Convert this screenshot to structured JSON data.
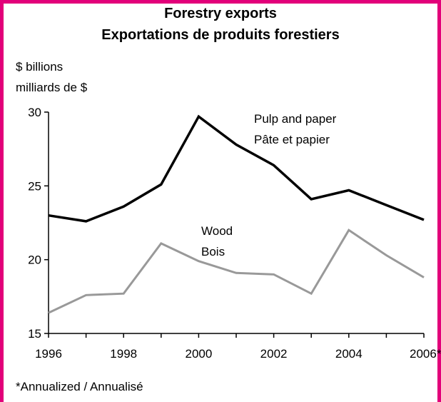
{
  "chart_data": {
    "type": "line",
    "title": "Forestry exports",
    "subtitle": "Exportations de produits forestiers",
    "ylabel": [
      "$ billions",
      "milliards de $"
    ],
    "xlabel": "",
    "x": [
      1996,
      1997,
      1998,
      1999,
      2000,
      2001,
      2002,
      2003,
      2004,
      2005,
      2006
    ],
    "x_tick_labels": [
      "1996",
      "1998",
      "2000",
      "2002",
      "2004",
      "2006*"
    ],
    "x_tick_values": [
      1996,
      1998,
      2000,
      2002,
      2004,
      2006
    ],
    "y_tick_labels": [
      "15",
      "20",
      "25",
      "30"
    ],
    "y_tick_values": [
      15,
      20,
      25,
      30
    ],
    "ylim": [
      15,
      30
    ],
    "grid": false,
    "series": [
      {
        "name": "Pulp and paper",
        "name_fr": "Pâte et papier",
        "color": "#000000",
        "values": [
          23.0,
          22.6,
          23.6,
          25.1,
          29.7,
          27.8,
          26.4,
          24.1,
          24.7,
          23.7,
          22.7
        ]
      },
      {
        "name": "Wood",
        "name_fr": "Bois",
        "color": "#999999",
        "values": [
          16.4,
          17.6,
          17.7,
          21.1,
          19.9,
          19.1,
          19.0,
          17.7,
          22.0,
          20.3,
          18.8
        ]
      }
    ],
    "footnote": "*Annualized / Annualisé"
  },
  "colors": {
    "frame": "#e2007a",
    "axis": "#000000"
  }
}
